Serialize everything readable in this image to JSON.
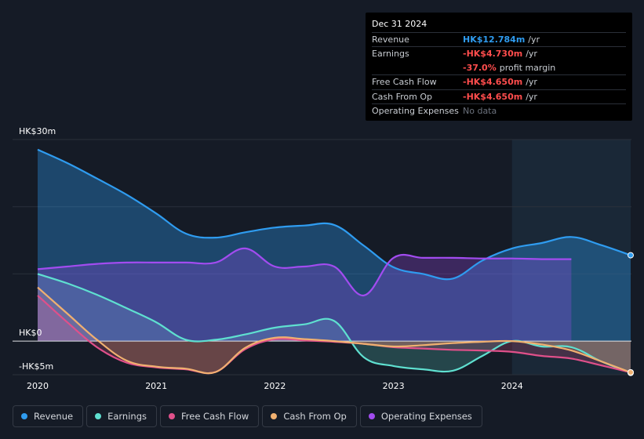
{
  "tooltip": {
    "date": "Dec 31 2024",
    "rows": [
      {
        "label": "Revenue",
        "value": "HK$12.784m",
        "unit": "/yr",
        "color": "#2f9cf0"
      },
      {
        "label": "Earnings",
        "value": "-HK$4.730m",
        "unit": "/yr",
        "color": "#ff4d4d"
      },
      {
        "label": "",
        "value": "-37.0%",
        "unit": "profit margin",
        "color": "#ff4d4d"
      },
      {
        "label": "Free Cash Flow",
        "value": "-HK$4.650m",
        "unit": "/yr",
        "color": "#ff4d4d"
      },
      {
        "label": "Cash From Op",
        "value": "-HK$4.650m",
        "unit": "/yr",
        "color": "#ff4d4d"
      },
      {
        "label": "Operating Expenses",
        "value": "No data",
        "unit": "",
        "color": "#6b717c"
      }
    ]
  },
  "legend": [
    {
      "label": "Revenue",
      "color": "#2f9cf0"
    },
    {
      "label": "Earnings",
      "color": "#5fe0d0"
    },
    {
      "label": "Free Cash Flow",
      "color": "#e0508a"
    },
    {
      "label": "Cash From Op",
      "color": "#f0b070"
    },
    {
      "label": "Operating Expenses",
      "color": "#a24cf0"
    }
  ],
  "chart_data": {
    "type": "area",
    "y_tick_labels": [
      "HK$30m",
      "HK$0",
      "-HK$5m"
    ],
    "x_tick_labels": [
      "2020",
      "2021",
      "2022",
      "2023",
      "2024"
    ],
    "xlim": [
      2020.0,
      2025.0
    ],
    "ylim": [
      -5,
      30
    ],
    "grid": true,
    "highlight_range": [
      2024.0,
      2025.0
    ],
    "series": [
      {
        "name": "Revenue",
        "color": "#2f9cf0",
        "x": [
          2020.0,
          2020.25,
          2020.5,
          2020.75,
          2021.0,
          2021.25,
          2021.5,
          2021.75,
          2022.0,
          2022.25,
          2022.5,
          2022.75,
          2023.0,
          2023.25,
          2023.5,
          2023.75,
          2024.0,
          2024.25,
          2024.5,
          2024.75,
          2025.0
        ],
        "y": [
          28.5,
          26.5,
          24.2,
          21.8,
          19.0,
          16.0,
          15.4,
          16.2,
          16.9,
          17.2,
          17.3,
          14.2,
          11.0,
          10.0,
          9.3,
          12.0,
          13.8,
          14.6,
          15.5,
          14.3,
          12.784
        ]
      },
      {
        "name": "Earnings",
        "color": "#5fe0d0",
        "x": [
          2020.0,
          2020.25,
          2020.5,
          2020.75,
          2021.0,
          2021.25,
          2021.5,
          2021.75,
          2022.0,
          2022.25,
          2022.5,
          2022.75,
          2023.0,
          2023.25,
          2023.5,
          2023.75,
          2024.0,
          2024.25,
          2024.5,
          2024.75,
          2025.0
        ],
        "y": [
          10.0,
          8.6,
          6.9,
          4.9,
          2.8,
          0.2,
          0.2,
          1.0,
          2.0,
          2.5,
          3.0,
          -2.4,
          -3.7,
          -4.2,
          -4.4,
          -2.2,
          0.0,
          -0.8,
          -0.9,
          -3.0,
          -4.73
        ]
      },
      {
        "name": "Free Cash Flow",
        "color": "#e0508a",
        "x": [
          2020.0,
          2020.25,
          2020.5,
          2020.75,
          2021.0,
          2021.25,
          2021.5,
          2021.75,
          2022.0,
          2022.25,
          2022.5,
          2022.75,
          2023.0,
          2023.25,
          2023.5,
          2023.75,
          2024.0,
          2024.25,
          2024.5,
          2024.75,
          2025.0
        ],
        "y": [
          6.8,
          2.8,
          -0.9,
          -3.2,
          -3.9,
          -4.2,
          -4.6,
          -1.2,
          0.3,
          0.1,
          -0.1,
          -0.4,
          -0.9,
          -1.1,
          -1.3,
          -1.4,
          -1.6,
          -2.2,
          -2.6,
          -3.6,
          -4.65
        ]
      },
      {
        "name": "Cash From Op",
        "color": "#f0b070",
        "x": [
          2020.0,
          2020.25,
          2020.5,
          2020.75,
          2021.0,
          2021.25,
          2021.5,
          2021.75,
          2022.0,
          2022.25,
          2022.5,
          2022.75,
          2023.0,
          2023.25,
          2023.5,
          2023.75,
          2024.0,
          2024.25,
          2024.5,
          2024.75,
          2025.0
        ],
        "y": [
          8.0,
          4.1,
          0.2,
          -2.9,
          -3.8,
          -4.1,
          -4.6,
          -1.0,
          0.5,
          0.3,
          0.0,
          -0.4,
          -0.8,
          -0.6,
          -0.3,
          -0.1,
          0.0,
          -0.5,
          -1.4,
          -3.0,
          -4.65
        ]
      },
      {
        "name": "Operating Expenses",
        "color": "#a24cf0",
        "x": [
          2020.0,
          2020.25,
          2020.5,
          2020.75,
          2021.0,
          2021.25,
          2021.5,
          2021.75,
          2022.0,
          2022.25,
          2022.5,
          2022.75,
          2023.0,
          2023.25,
          2023.5,
          2023.75,
          2024.0,
          2024.25,
          2024.5
        ],
        "y": [
          10.7,
          11.1,
          11.5,
          11.7,
          11.7,
          11.7,
          11.7,
          13.8,
          11.1,
          11.1,
          11.1,
          6.8,
          12.4,
          12.4,
          12.4,
          12.3,
          12.3,
          12.2,
          12.2
        ]
      }
    ]
  }
}
